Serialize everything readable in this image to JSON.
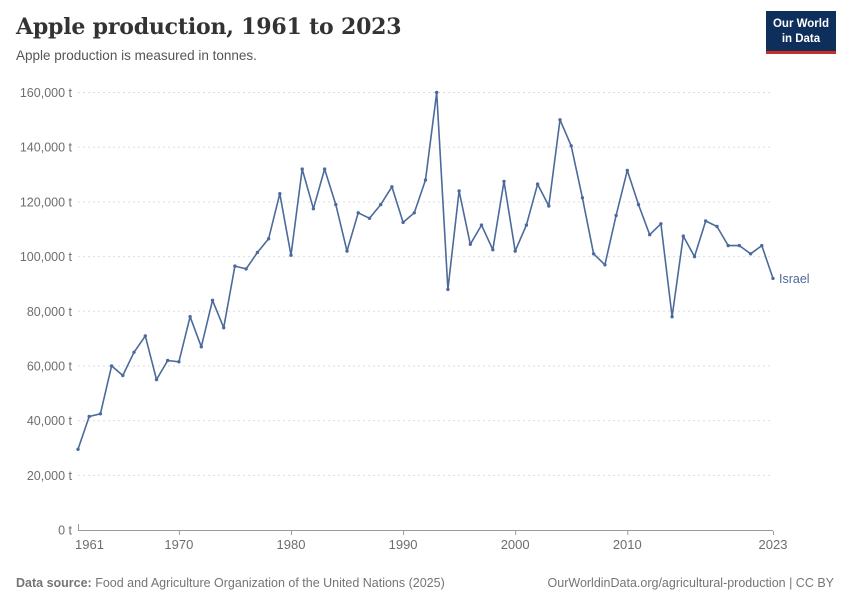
{
  "header": {
    "title": "Apple production, 1961 to 2023",
    "subtitle": "Apple production is measured in tonnes.",
    "logo": {
      "line1": "Our World",
      "line2": "in Data"
    }
  },
  "colors": {
    "line": "#4C6A9C",
    "grid": "#dddddd",
    "axis": "#9a9a9a",
    "tick_label": "#6e6e6e",
    "title": "#333333",
    "subtitle": "#555555",
    "footer": "#757575",
    "logo_bg": "#0E2E5C",
    "logo_red": "#CB2D24"
  },
  "chart_data": {
    "type": "line",
    "title": "Apple production, 1961 to 2023",
    "unit": "tonnes",
    "grid": true,
    "legend_position": "end-of-line",
    "xlim": [
      1961,
      2023
    ],
    "ylim": [
      0,
      160000
    ],
    "xticks": [
      1961,
      1970,
      1980,
      1990,
      2000,
      2010,
      2023
    ],
    "xtick_labels": [
      "1961",
      "1970",
      "1980",
      "1990",
      "2000",
      "2010",
      "2023"
    ],
    "yticks": [
      0,
      20000,
      40000,
      60000,
      80000,
      100000,
      120000,
      140000,
      160000
    ],
    "ytick_labels": [
      "0 t",
      "20,000 t",
      "40,000 t",
      "60,000 t",
      "80,000 t",
      "100,000 t",
      "120,000 t",
      "140,000 t",
      "160,000 t"
    ],
    "x": [
      1961,
      1962,
      1963,
      1964,
      1965,
      1966,
      1967,
      1968,
      1969,
      1970,
      1971,
      1972,
      1973,
      1974,
      1975,
      1976,
      1977,
      1978,
      1979,
      1980,
      1981,
      1982,
      1983,
      1984,
      1985,
      1986,
      1987,
      1988,
      1989,
      1990,
      1991,
      1992,
      1993,
      1994,
      1995,
      1996,
      1997,
      1998,
      1999,
      2000,
      2001,
      2002,
      2003,
      2004,
      2005,
      2006,
      2007,
      2008,
      2009,
      2010,
      2011,
      2012,
      2013,
      2014,
      2015,
      2016,
      2017,
      2018,
      2019,
      2020,
      2021,
      2022,
      2023
    ],
    "series": [
      {
        "name": "Israel",
        "values": [
          29500,
          41500,
          42500,
          60000,
          56500,
          65000,
          71000,
          55000,
          62000,
          61500,
          78000,
          67000,
          84000,
          74000,
          96500,
          95500,
          101500,
          106500,
          123000,
          100500,
          132000,
          117500,
          132000,
          119000,
          102000,
          116000,
          114000,
          119000,
          125500,
          112500,
          116000,
          128000,
          160000,
          88000,
          124000,
          104500,
          111500,
          102500,
          127500,
          102000,
          111500,
          126500,
          118500,
          150000,
          140500,
          121500,
          101000,
          97000,
          115000,
          131500,
          119000,
          108000,
          112000,
          78000,
          107500,
          100000,
          113000,
          111000,
          104000,
          104000,
          101000,
          104000,
          92000
        ]
      }
    ]
  },
  "footer": {
    "source_label": "Data source:",
    "source_text": "Food and Agriculture Organization of the United Nations (2025)",
    "link_text": "OurWorldinData.org/agricultural-production | CC BY"
  }
}
